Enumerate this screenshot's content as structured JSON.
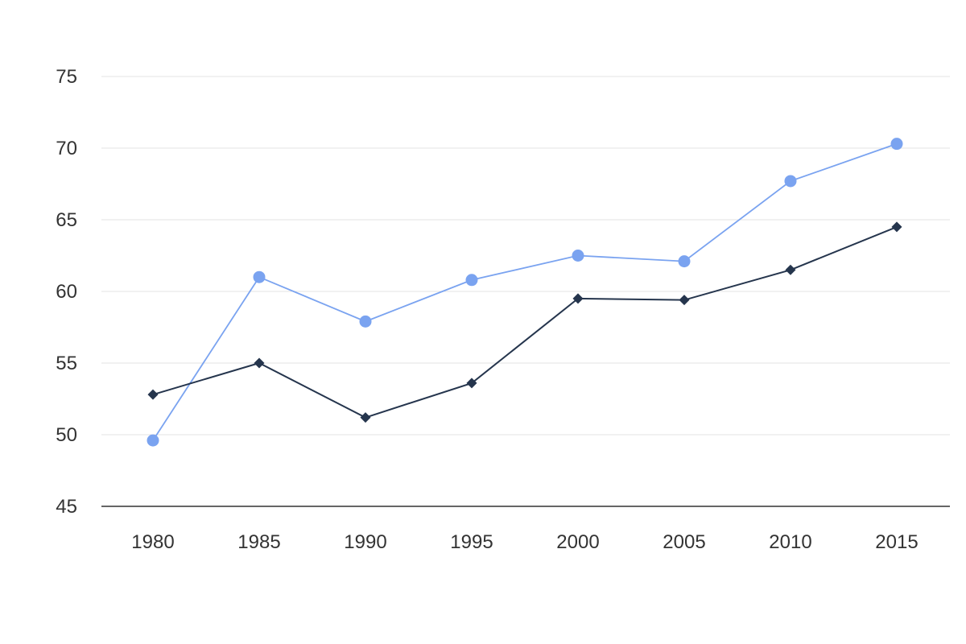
{
  "chart_data": {
    "type": "line",
    "title": "",
    "xlabel": "",
    "ylabel": "",
    "x": [
      1980,
      1985,
      1990,
      1995,
      2000,
      2005,
      2010,
      2015
    ],
    "ylim": [
      45,
      75
    ],
    "yticks": [
      45,
      50,
      55,
      60,
      65,
      70,
      75
    ],
    "grid": true,
    "legend": "none",
    "series": [
      {
        "marker": "circle",
        "color": "#7aa3f0",
        "values": [
          49.6,
          61.0,
          57.9,
          60.8,
          62.5,
          62.1,
          67.7,
          70.3
        ]
      },
      {
        "marker": "diamond",
        "color": "#25354d",
        "values": [
          52.8,
          55.0,
          51.2,
          53.6,
          59.5,
          59.4,
          61.5,
          64.5
        ]
      }
    ]
  }
}
